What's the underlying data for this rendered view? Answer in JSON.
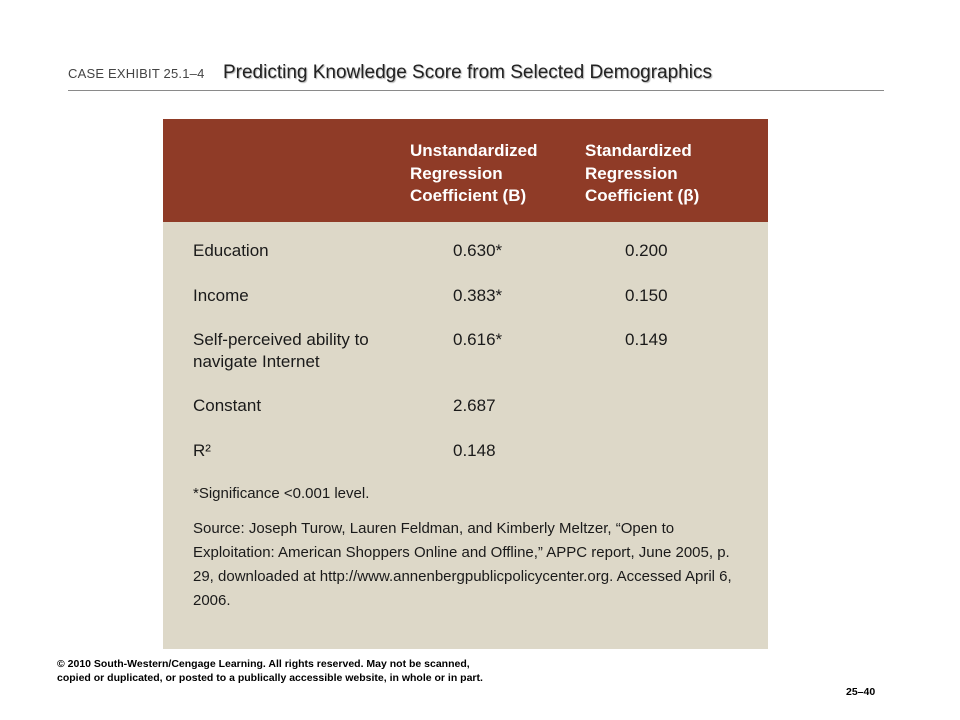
{
  "header": {
    "exhibit_label": "CASE EXHIBIT 25.1–4",
    "title": "Predicting Knowledge Score from Selected Demographics"
  },
  "table": {
    "header_color": "#8f3b27",
    "body_color": "#ddd8c8",
    "columns": {
      "b": "Unstandardized\nRegression\nCoefficient (B)",
      "beta": "Standardized\nRegression\nCoefficient (β)"
    },
    "rows": [
      {
        "label": "Education",
        "b": "0.630*",
        "beta": "0.200"
      },
      {
        "label": "Income",
        "b": "0.383*",
        "beta": "0.150"
      },
      {
        "label": "Self-perceived ability to\nnavigate Internet",
        "b": "0.616*",
        "beta": "0.149"
      },
      {
        "label": "Constant",
        "b": "2.687",
        "beta": ""
      },
      {
        "label": "R²",
        "b": "0.148",
        "beta": ""
      }
    ],
    "note": "*Significance <0.001 level.",
    "source": "Source: Joseph Turow, Lauren Feldman, and Kimberly Meltzer, “Open to Exploitation: American Shoppers Online and Offline,” APPC report, June 2005, p. 29, downloaded at http://www.annenbergpublicpolicycenter.org. Accessed April 6, 2006."
  },
  "footer": {
    "copyright": "© 2010 South-Western/Cengage Learning. All rights reserved. May not be scanned, copied or duplicated, or posted to a publically accessible website, in whole or in part.",
    "page_number": "25–40"
  }
}
